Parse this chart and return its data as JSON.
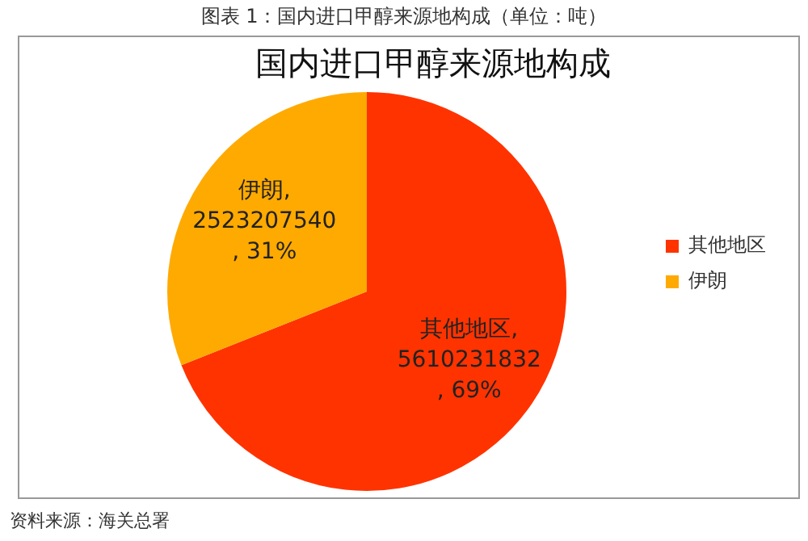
{
  "chart_data": {
    "type": "pie",
    "title": "图表 1：国内进口甲醇来源地构成（单位：吨）",
    "subtitle": "国内进口甲醇来源地构成",
    "categories": [
      "其他地区",
      "伊朗"
    ],
    "values": [
      5610231832,
      2523207540
    ],
    "colors": [
      "#ff3300",
      "#ffaa00"
    ],
    "value_labels": [
      "其他地区,\n5610231832\n, 69%",
      "伊朗,\n2523207540\n, 31%"
    ],
    "legend": "right",
    "annotations": [
      "资料来源：海关总署"
    ]
  }
}
